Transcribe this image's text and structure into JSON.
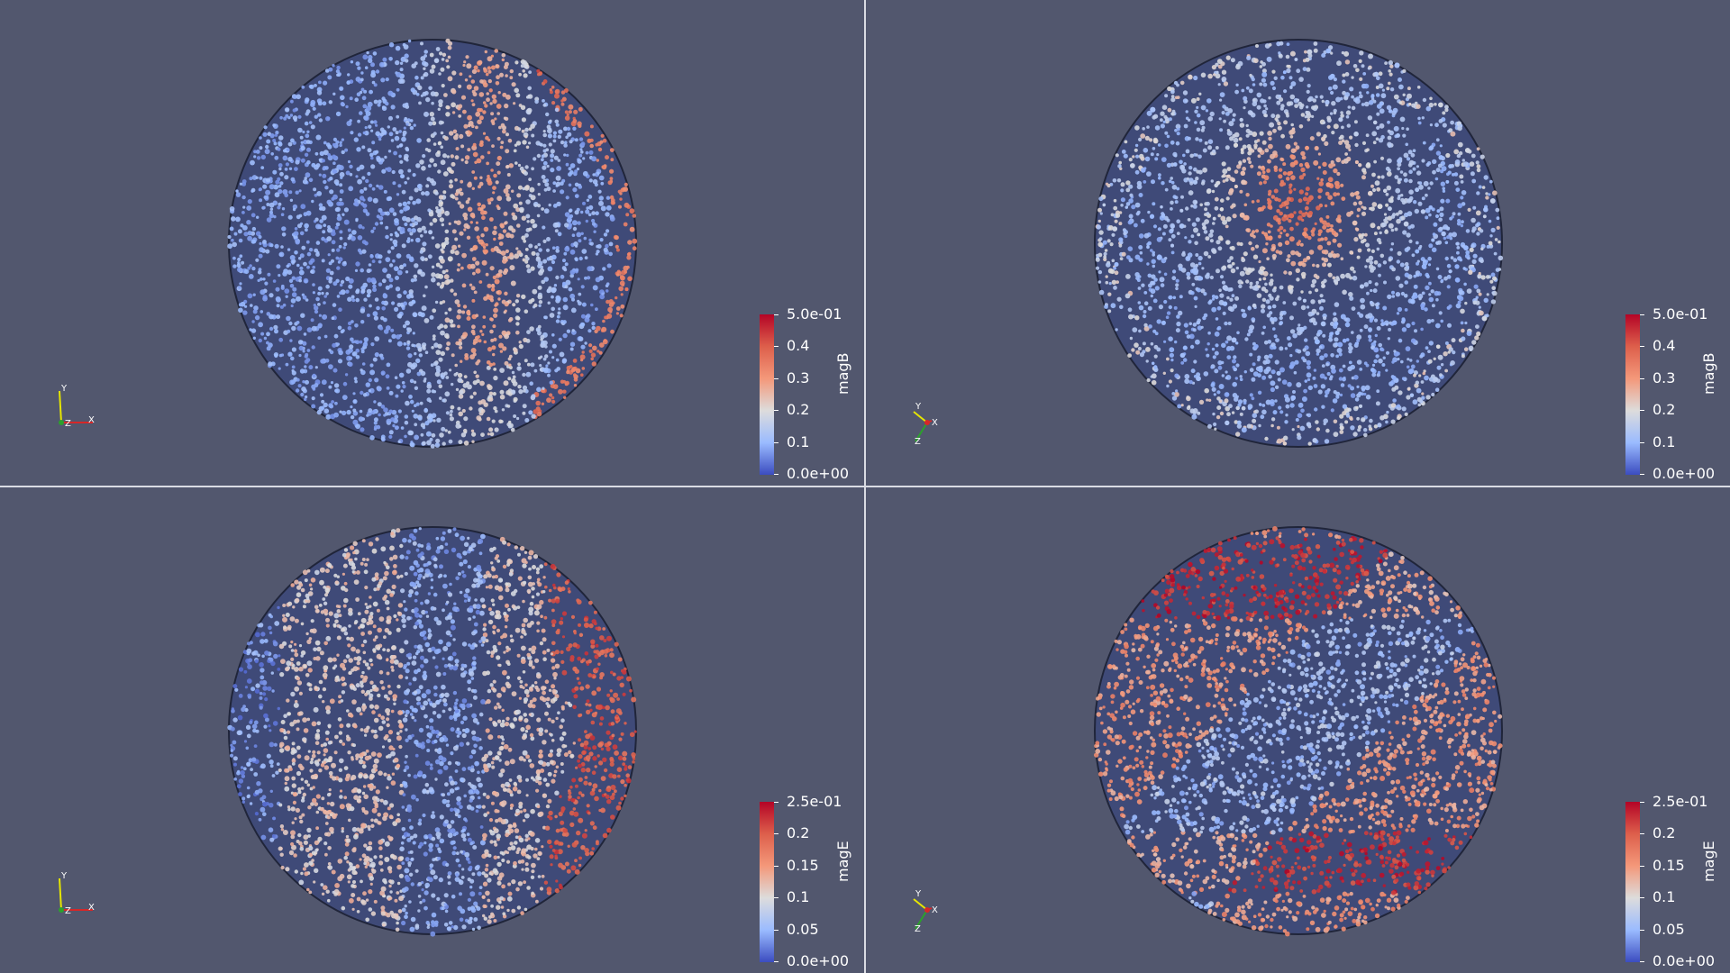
{
  "viewports": [
    {
      "name": "top-left",
      "field": "magB",
      "colorbar": {
        "title": "magB",
        "ticks": [
          "5.0e-01",
          "0.4",
          "0.3",
          "0.2",
          "0.1",
          "0.0e+00"
        ]
      },
      "axes": {
        "labels": [
          "Y",
          "Z",
          "X"
        ],
        "orientation": "front"
      },
      "pattern": "magB-front"
    },
    {
      "name": "top-right",
      "field": "magB",
      "colorbar": {
        "title": "magB",
        "ticks": [
          "5.0e-01",
          "0.4",
          "0.3",
          "0.2",
          "0.1",
          "0.0e+00"
        ]
      },
      "axes": {
        "labels": [
          "Y",
          "X",
          "Z"
        ],
        "orientation": "oblique"
      },
      "pattern": "magB-oblique"
    },
    {
      "name": "bottom-left",
      "field": "magE",
      "colorbar": {
        "title": "magE",
        "ticks": [
          "2.5e-01",
          "0.2",
          "0.15",
          "0.1",
          "0.05",
          "0.0e+00"
        ]
      },
      "axes": {
        "labels": [
          "Y",
          "Z",
          "X"
        ],
        "orientation": "front"
      },
      "pattern": "magE-front"
    },
    {
      "name": "bottom-right",
      "field": "magE",
      "colorbar": {
        "title": "magE",
        "ticks": [
          "2.5e-01",
          "0.2",
          "0.15",
          "0.1",
          "0.05",
          "0.0e+00"
        ]
      },
      "axes": {
        "labels": [
          "Y",
          "X",
          "Z"
        ],
        "orientation": "oblique"
      },
      "pattern": "magE-oblique"
    }
  ],
  "colors": {
    "background": "#52576e",
    "colormap": [
      "#3b4cc0",
      "#9abbff",
      "#dddcdc",
      "#f4987a",
      "#dd5f4b",
      "#b40426"
    ],
    "axis_x": "#d62728",
    "axis_y": "#e6e600",
    "axis_z": "#2ca02c",
    "separator": "#d9dbe3"
  }
}
